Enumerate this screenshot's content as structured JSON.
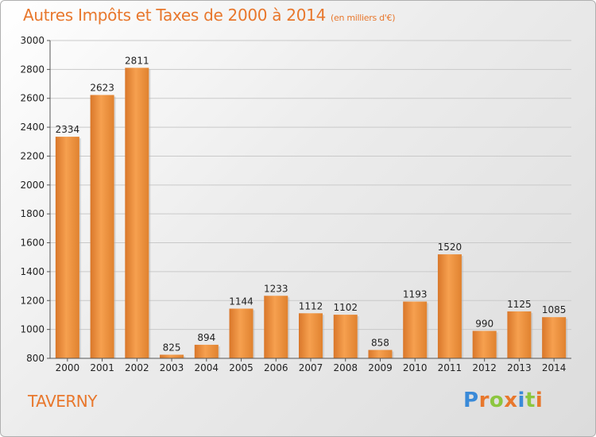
{
  "title": "Autres Impôts et Taxes de 2000 à 2014",
  "unit": "(en milliers d'€)",
  "city": "TAVERNY",
  "logo": {
    "text": "Proxiti",
    "letters": [
      {
        "ch": "P",
        "color": "#3a8ad8"
      },
      {
        "ch": "r",
        "color": "#e8772c"
      },
      {
        "ch": "o",
        "color": "#8cc63f"
      },
      {
        "ch": "x",
        "color": "#e8772c"
      },
      {
        "ch": "i",
        "color": "#3a8ad8"
      },
      {
        "ch": "t",
        "color": "#8cc63f"
      },
      {
        "ch": "i",
        "color": "#e8772c"
      }
    ]
  },
  "chart_data": {
    "type": "bar",
    "categories": [
      "2000",
      "2001",
      "2002",
      "2003",
      "2004",
      "2005",
      "2006",
      "2007",
      "2008",
      "2009",
      "2010",
      "2011",
      "2012",
      "2013",
      "2014"
    ],
    "values": [
      2334,
      2623,
      2811,
      825,
      894,
      1144,
      1233,
      1112,
      1102,
      858,
      1193,
      1520,
      990,
      1125,
      1085
    ],
    "ylim": [
      800,
      3000
    ],
    "yticks": [
      800,
      1000,
      1200,
      1400,
      1600,
      1800,
      2000,
      2200,
      2400,
      2600,
      2800,
      3000
    ],
    "grid": true,
    "bar_color": "#f0913e"
  }
}
